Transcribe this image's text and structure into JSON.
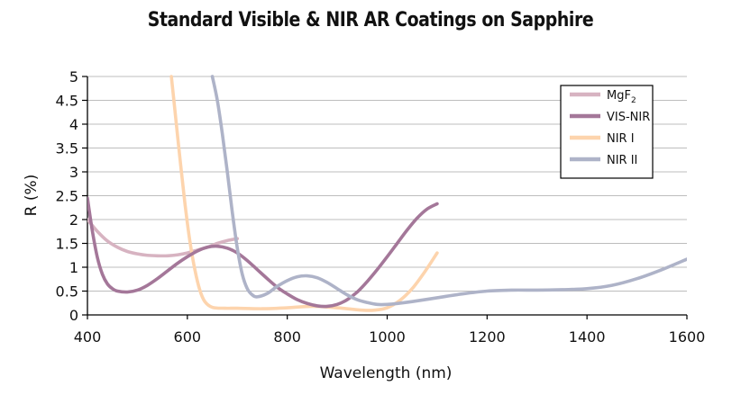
{
  "chart_data": {
    "type": "line",
    "title": "Standard Visible & NIR AR Coatings on Sapphire",
    "xlabel": "Wavelength (nm)",
    "ylabel": "R (%)",
    "xlim": [
      400,
      1600
    ],
    "ylim": [
      0,
      5
    ],
    "x_ticks": [
      "400",
      "600",
      "800",
      "1000",
      "1200",
      "1400",
      "1600"
    ],
    "y_ticks": [
      "0",
      "0.5",
      "1",
      "1.5",
      "2",
      "2.5",
      "3",
      "3.5",
      "4",
      "4.5",
      "5"
    ],
    "grid": "horizontal",
    "legend_position": "top-right",
    "series": [
      {
        "name": "MgF",
        "name_subscript": "2",
        "color": "#d7b3c1",
        "x": [
          400,
          420,
          440,
          460,
          480,
          500,
          520,
          540,
          560,
          580,
          600,
          620,
          640,
          660,
          680,
          700
        ],
        "y": [
          2.0,
          1.75,
          1.55,
          1.42,
          1.33,
          1.28,
          1.25,
          1.24,
          1.24,
          1.26,
          1.3,
          1.36,
          1.42,
          1.5,
          1.56,
          1.6
        ]
      },
      {
        "name": "VIS-NIR",
        "color": "#a47799",
        "x": [
          400,
          410,
          420,
          430,
          440,
          450,
          460,
          480,
          500,
          520,
          540,
          560,
          580,
          600,
          620,
          640,
          660,
          680,
          700,
          720,
          740,
          760,
          780,
          800,
          820,
          840,
          860,
          880,
          900,
          920,
          940,
          960,
          980,
          1000,
          1020,
          1040,
          1060,
          1080,
          1100
        ],
        "y": [
          2.45,
          1.75,
          1.2,
          0.85,
          0.65,
          0.55,
          0.5,
          0.48,
          0.52,
          0.62,
          0.76,
          0.92,
          1.08,
          1.22,
          1.34,
          1.42,
          1.44,
          1.4,
          1.3,
          1.14,
          0.95,
          0.76,
          0.58,
          0.44,
          0.32,
          0.24,
          0.19,
          0.18,
          0.22,
          0.32,
          0.48,
          0.7,
          0.95,
          1.22,
          1.5,
          1.78,
          2.03,
          2.22,
          2.33
        ]
      },
      {
        "name": "NIR I",
        "color": "#fdd4ad",
        "x": [
          568,
          575,
          585,
          595,
          605,
          615,
          625,
          635,
          650,
          675,
          700,
          750,
          800,
          850,
          900,
          950,
          975,
          1000,
          1025,
          1050,
          1075,
          1100
        ],
        "y": [
          5.0,
          4.3,
          3.3,
          2.35,
          1.55,
          0.95,
          0.52,
          0.28,
          0.16,
          0.14,
          0.14,
          0.13,
          0.15,
          0.18,
          0.15,
          0.1,
          0.1,
          0.15,
          0.3,
          0.55,
          0.9,
          1.3
        ]
      },
      {
        "name": "NIR II",
        "color": "#aeb3c8",
        "x": [
          650,
          660,
          670,
          680,
          690,
          700,
          710,
          720,
          730,
          740,
          760,
          780,
          800,
          820,
          840,
          860,
          880,
          900,
          920,
          940,
          960,
          980,
          1000,
          1020,
          1050,
          1100,
          1150,
          1200,
          1250,
          1300,
          1350,
          1400,
          1450,
          1500,
          1550,
          1600
        ],
        "y": [
          5.0,
          4.5,
          3.8,
          3.0,
          2.15,
          1.4,
          0.85,
          0.55,
          0.42,
          0.38,
          0.45,
          0.6,
          0.72,
          0.8,
          0.82,
          0.78,
          0.68,
          0.55,
          0.42,
          0.32,
          0.26,
          0.22,
          0.22,
          0.24,
          0.28,
          0.36,
          0.44,
          0.5,
          0.52,
          0.52,
          0.53,
          0.55,
          0.62,
          0.76,
          0.95,
          1.17
        ]
      }
    ]
  }
}
